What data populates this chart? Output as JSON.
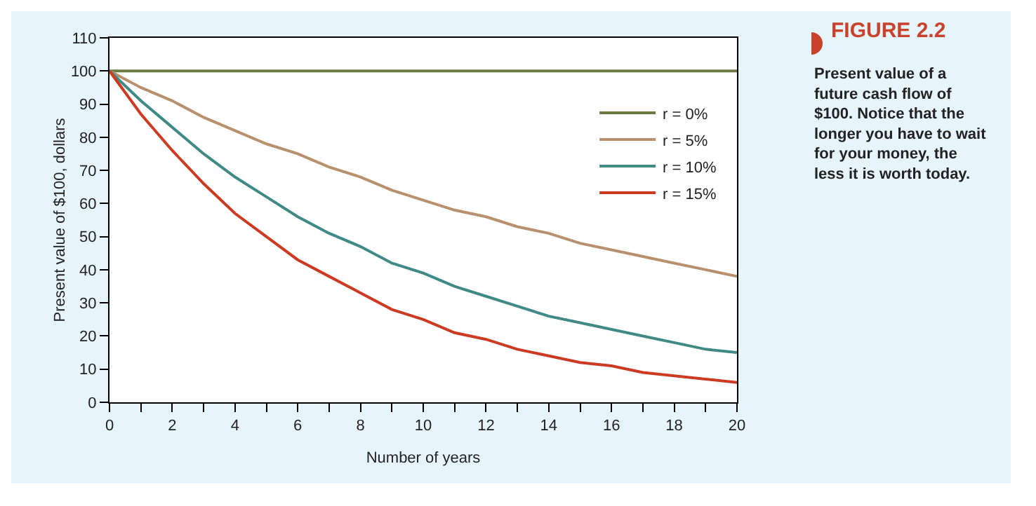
{
  "chart_data": {
    "type": "line",
    "title": "FIGURE 2.2",
    "subtitle": "Present value of a future cash flow of $100. Notice that the longer you have to wait for your money, the less it is worth today.",
    "xlabel": "Number of years",
    "ylabel": "Present value of $100, dollars",
    "x": [
      0,
      1,
      2,
      3,
      4,
      5,
      6,
      7,
      8,
      9,
      10,
      11,
      12,
      13,
      14,
      15,
      16,
      17,
      18,
      19,
      20
    ],
    "series": [
      {
        "name": "r = 0%",
        "color": "#6b7b44",
        "values": [
          100,
          100,
          100,
          100,
          100,
          100,
          100,
          100,
          100,
          100,
          100,
          100,
          100,
          100,
          100,
          100,
          100,
          100,
          100,
          100,
          100
        ]
      },
      {
        "name": "r = 5%",
        "color": "#b8906e",
        "values": [
          100,
          95,
          91,
          86,
          82,
          78,
          75,
          71,
          68,
          64,
          61,
          58,
          56,
          53,
          51,
          48,
          46,
          44,
          42,
          40,
          38
        ]
      },
      {
        "name": "r = 10%",
        "color": "#3f8a86",
        "values": [
          100,
          91,
          83,
          75,
          68,
          62,
          56,
          51,
          47,
          42,
          39,
          35,
          32,
          29,
          26,
          24,
          22,
          20,
          18,
          16,
          15
        ]
      },
      {
        "name": "r = 15%",
        "color": "#cc3a22",
        "values": [
          100,
          87,
          76,
          66,
          57,
          50,
          43,
          38,
          33,
          28,
          25,
          21,
          19,
          16,
          14,
          12,
          11,
          9,
          8,
          7,
          6
        ]
      }
    ],
    "xlim": [
      0,
      20
    ],
    "ylim": [
      0,
      110
    ],
    "xticks": [
      0,
      {
        "value": 1,
        "label": null
      },
      2,
      {
        "value": 3,
        "label": null
      },
      4,
      {
        "value": 5,
        "label": null
      },
      6,
      {
        "value": 7,
        "label": null
      },
      8,
      {
        "value": 9,
        "label": null
      },
      10,
      {
        "value": 11,
        "label": null
      },
      12,
      {
        "value": 13,
        "label": null
      },
      14,
      {
        "value": 15,
        "label": null
      },
      16,
      {
        "value": 17,
        "label": null
      },
      18,
      {
        "value": 19,
        "label": null
      },
      20
    ],
    "yticks": [
      0,
      10,
      20,
      30,
      40,
      50,
      60,
      70,
      80,
      90,
      100,
      110
    ],
    "grid": false,
    "legend": "top right",
    "marker": "none",
    "line_style": "solid"
  }
}
